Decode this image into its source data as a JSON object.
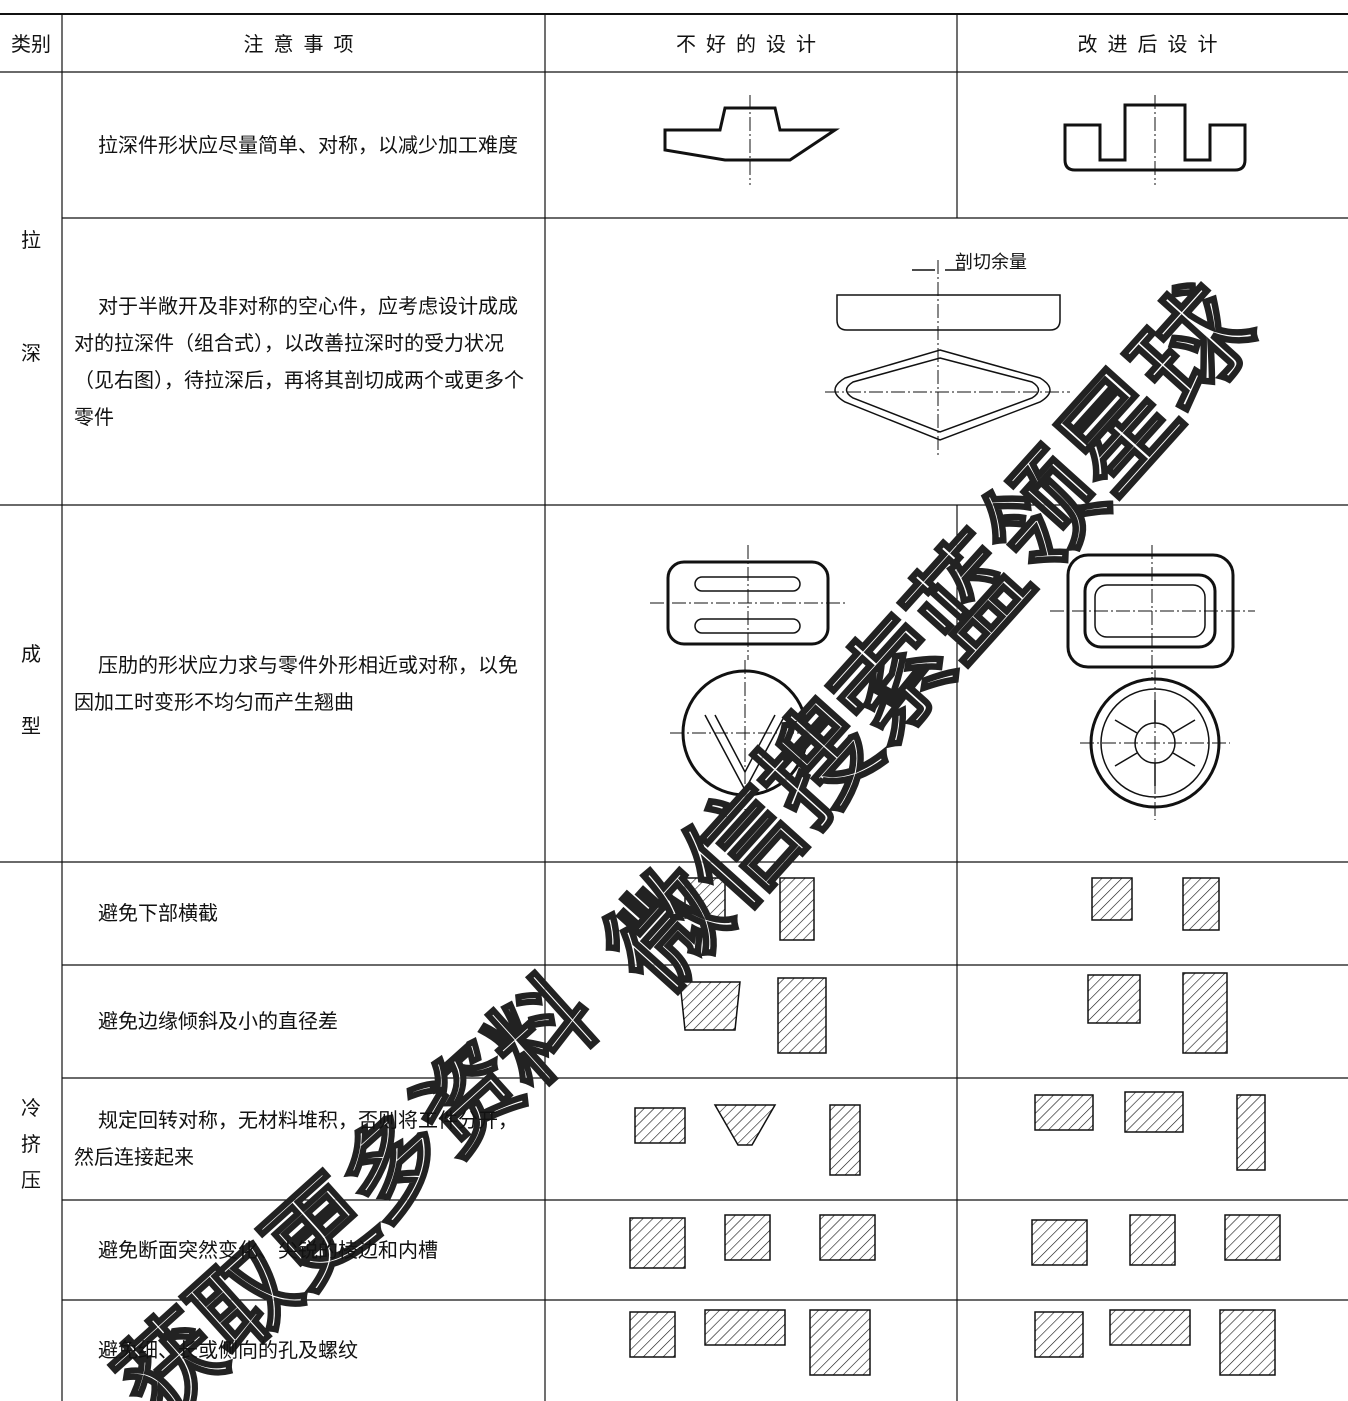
{
  "header": {
    "columns": [
      "类别",
      "注意事项",
      "不好的设计",
      "改进后设计"
    ]
  },
  "groups": [
    {
      "category": [
        "拉",
        "深"
      ],
      "rows": [
        {
          "note": "拉深件形状应尽量简单、对称，以减少加工难度"
        },
        {
          "note": "对于半敞开及非对称的空心件，应考虑设计成成对的拉深件（组合式），以改善拉深时的受力状况（见右图），待拉深后，再将其剖切成两个或更多个零件",
          "annotation": "剖切余量"
        }
      ]
    },
    {
      "category": [
        "成",
        "型"
      ],
      "rows": [
        {
          "note": "压肋的形状应力求与零件外形相近或对称，以免因加工时变形不均匀而产生翘曲"
        }
      ]
    },
    {
      "category": [
        "冷",
        "挤",
        "压"
      ],
      "rows": [
        {
          "note": "避免下部横截"
        },
        {
          "note": "避免边缘倾斜及小的直径差"
        },
        {
          "note": "规定回转对称，无材料堆积，否则将工件分开，然后连接起来"
        },
        {
          "note": "避免断面突然变化、尖锐的棱边和内槽"
        },
        {
          "note": "避免细、长或侧向的孔及螺纹"
        }
      ]
    }
  ],
  "watermark": [
    "微信搜索蓝领星球",
    "获取更多资料"
  ]
}
